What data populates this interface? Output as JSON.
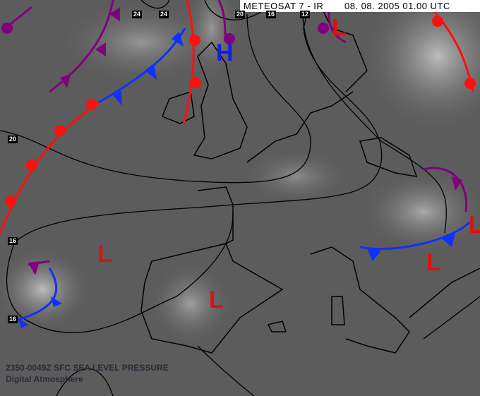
{
  "header": {
    "title": "METEOSAT 7 - IR",
    "datetime": "08. 08. 2005 01.00 UTC"
  },
  "isobar_labels": [
    "24",
    "24",
    "20",
    "16",
    "12",
    "20",
    "16",
    "16"
  ],
  "pressure_centers": [
    {
      "type": "L",
      "color": "#e01010"
    },
    {
      "type": "H",
      "color": "#1020e0"
    },
    {
      "type": "L",
      "color": "#e01010"
    },
    {
      "type": "L",
      "color": "#e01010"
    },
    {
      "type": "L",
      "color": "#e01010"
    },
    {
      "type": "L",
      "color": "#e01010"
    }
  ],
  "caption": {
    "line1": "2350-0049Z SFC SEA LEVEL PRESSURE",
    "line2": "Digital Atmosphere"
  },
  "colors": {
    "warm_front": "#ff1010",
    "cold_front": "#1030ff",
    "occluded_front": "#800080",
    "isobar": "#000000"
  }
}
